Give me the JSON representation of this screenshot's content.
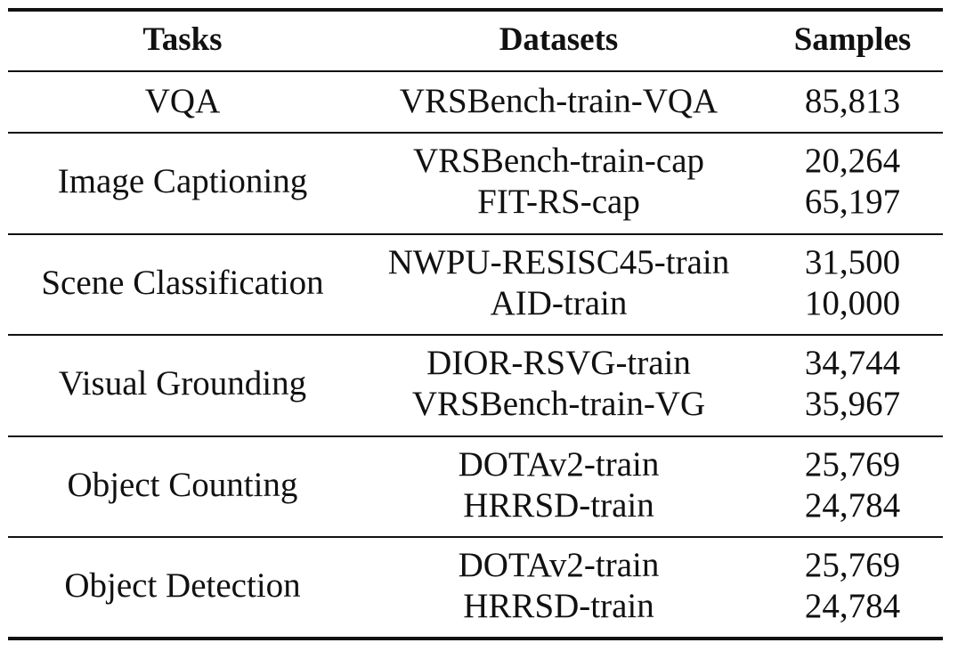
{
  "table": {
    "headers": {
      "tasks": "Tasks",
      "datasets": "Datasets",
      "samples": "Samples"
    },
    "groups": [
      {
        "task": "VQA",
        "rows": [
          {
            "dataset": "VRSBench-train-VQA",
            "samples": "85,813"
          }
        ]
      },
      {
        "task": "Image Captioning",
        "rows": [
          {
            "dataset": "VRSBench-train-cap",
            "samples": "20,264"
          },
          {
            "dataset": "FIT-RS-cap",
            "samples": "65,197"
          }
        ]
      },
      {
        "task": "Scene Classification",
        "rows": [
          {
            "dataset": "NWPU-RESISC45-train",
            "samples": "31,500"
          },
          {
            "dataset": "AID-train",
            "samples": "10,000"
          }
        ]
      },
      {
        "task": "Visual Grounding",
        "rows": [
          {
            "dataset": "DIOR-RSVG-train",
            "samples": "34,744"
          },
          {
            "dataset": "VRSBench-train-VG",
            "samples": "35,967"
          }
        ]
      },
      {
        "task": "Object Counting",
        "rows": [
          {
            "dataset": "DOTAv2-train",
            "samples": "25,769"
          },
          {
            "dataset": "HRRSD-train",
            "samples": "24,784"
          }
        ]
      },
      {
        "task": "Object Detection",
        "rows": [
          {
            "dataset": "DOTAv2-train",
            "samples": "25,769"
          },
          {
            "dataset": "HRRSD-train",
            "samples": "24,784"
          }
        ]
      }
    ]
  }
}
